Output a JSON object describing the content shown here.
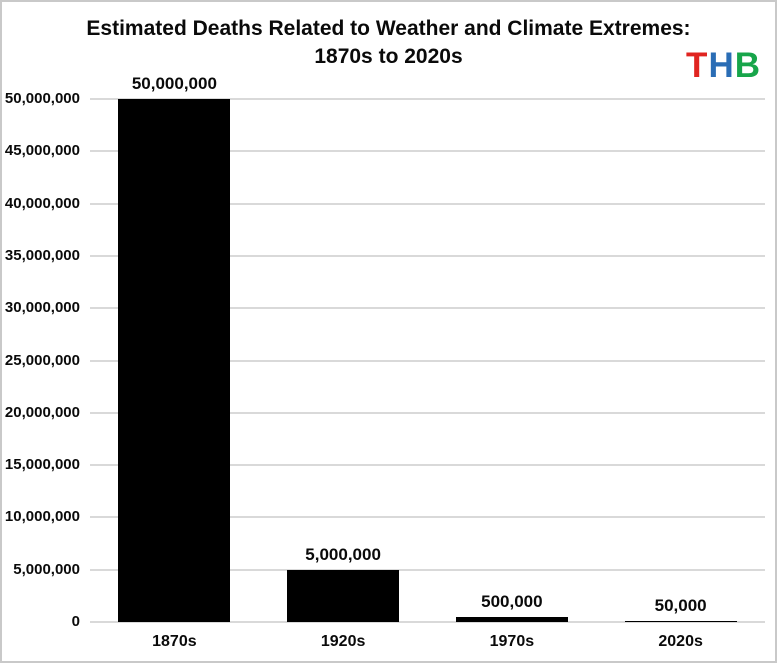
{
  "page": {
    "background_color": "#ffffff",
    "border_color": "#c9c9c9"
  },
  "header": {
    "title_line1": "Estimated Deaths Related to Weather and Climate Extremes:",
    "title_line2": "1870s to 2020s",
    "logo": {
      "letters": [
        {
          "char": "T",
          "color": "#e02420"
        },
        {
          "char": "H",
          "color": "#2a6db5"
        },
        {
          "char": "B",
          "color": "#17a54a"
        }
      ]
    }
  },
  "chart_data": {
    "type": "bar",
    "title": "Estimated Deaths Related to Weather and Climate Extremes: 1870s to 2020s",
    "categories": [
      "1870s",
      "1920s",
      "1970s",
      "2020s"
    ],
    "values": [
      50000000,
      5000000,
      500000,
      50000
    ],
    "value_labels": [
      "50,000,000",
      "5,000,000",
      "500,000",
      "50,000"
    ],
    "xlabel": "",
    "ylabel": "",
    "ylim": [
      0,
      50000000
    ],
    "ytick_step": 5000000,
    "ytick_labels": [
      "0",
      "5,000,000",
      "10,000,000",
      "15,000,000",
      "20,000,000",
      "25,000,000",
      "30,000,000",
      "35,000,000",
      "40,000,000",
      "45,000,000",
      "50,000,000"
    ],
    "grid": true,
    "gridline_color": "#d9d9d9",
    "bar_color": "#000000",
    "legend_position": "none"
  }
}
